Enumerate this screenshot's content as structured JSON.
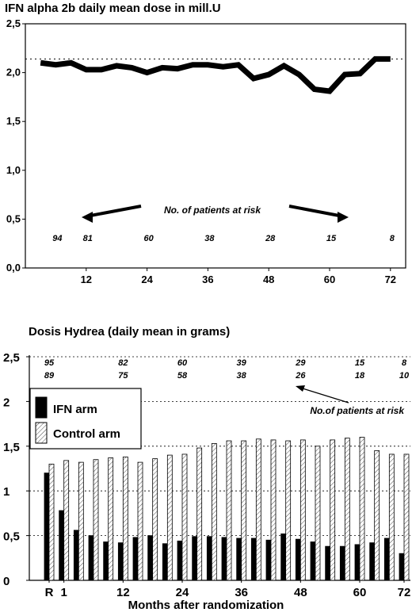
{
  "chart_data": [
    {
      "type": "line",
      "title": "IFN alpha 2b daily mean dose in mill.U",
      "xlabel": "",
      "ylabel": "",
      "ylim": [
        0,
        2.5
      ],
      "yticks": [
        "0,0",
        "0,5",
        "1,0",
        "1,5",
        "2,0",
        "2,5"
      ],
      "xticks": [
        "12",
        "24",
        "36",
        "48",
        "60",
        "72"
      ],
      "xlim": [
        0,
        75
      ],
      "x": [
        3,
        6,
        9,
        12,
        15,
        18,
        21,
        24,
        27,
        30,
        33,
        36,
        39,
        42,
        45,
        48,
        51,
        54,
        57,
        60,
        63,
        66,
        69,
        72
      ],
      "series": [
        {
          "values": [
            2.1,
            2.08,
            2.1,
            2.03,
            2.03,
            2.07,
            2.05,
            2.0,
            2.05,
            2.04,
            2.08,
            2.08,
            2.06,
            2.08,
            1.94,
            1.98,
            2.07,
            1.98,
            1.83,
            1.81,
            1.98,
            1.99,
            2.14,
            2.14
          ]
        }
      ],
      "reference_line": 2.14,
      "annotation": "No. of patients at risk",
      "at_risk": {
        "x": [
          6,
          12,
          24,
          36,
          48,
          60,
          72
        ],
        "values": [
          "94",
          "81",
          "60",
          "38",
          "28",
          "15",
          "8"
        ]
      },
      "grid": false
    },
    {
      "type": "bar",
      "title": "Dosis Hydrea (daily mean in grams)",
      "xlabel": "Months after randomization",
      "ylabel": "",
      "ylim": [
        0,
        2.5
      ],
      "yticks": [
        "0",
        "0,5",
        "1",
        "1,5",
        "2",
        "2,5"
      ],
      "categories": [
        "R",
        "1",
        "",
        "",
        "",
        "12",
        "",
        "",
        "",
        "24",
        "",
        "",
        "",
        "36",
        "",
        "",
        "",
        "48",
        "",
        "",
        "",
        "60",
        "",
        "",
        "72"
      ],
      "series": [
        {
          "name": "IFN arm",
          "color": "#000000",
          "values": [
            1.2,
            0.78,
            0.56,
            0.5,
            0.43,
            0.42,
            0.48,
            0.5,
            0.41,
            0.44,
            0.49,
            0.49,
            0.48,
            0.47,
            0.47,
            0.45,
            0.52,
            0.46,
            0.43,
            0.38,
            0.38,
            0.4,
            0.42,
            0.47,
            0.3
          ]
        },
        {
          "name": "Control arm",
          "color": "#ffffff",
          "values": [
            1.3,
            1.34,
            1.32,
            1.35,
            1.37,
            1.38,
            1.32,
            1.36,
            1.4,
            1.41,
            1.48,
            1.53,
            1.56,
            1.56,
            1.58,
            1.57,
            1.56,
            1.57,
            1.5,
            1.57,
            1.59,
            1.6,
            1.45,
            1.41,
            1.41
          ]
        }
      ],
      "annotation": "No.of patients at risk",
      "at_risk": {
        "positions": [
          "R",
          "12",
          "24",
          "36",
          "48",
          "60",
          "72"
        ],
        "ifn": [
          "95",
          "82",
          "60",
          "39",
          "29",
          "15",
          "8"
        ],
        "control": [
          "89",
          "75",
          "58",
          "38",
          "26",
          "18",
          "10"
        ]
      },
      "legend": "top-left",
      "grid": true
    }
  ]
}
